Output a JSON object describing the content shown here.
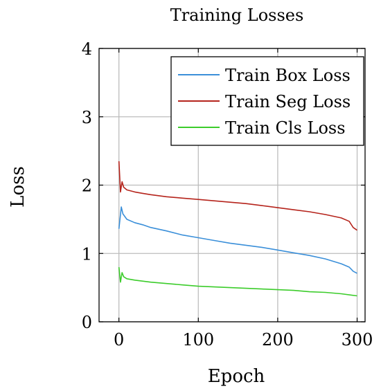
{
  "chart_data": {
    "type": "line",
    "title": "Training Losses",
    "xlabel": "Epoch",
    "ylabel": "Loss",
    "xlim": [
      -25,
      310
    ],
    "ylim": [
      0,
      4
    ],
    "xticks": [
      0,
      100,
      200,
      300
    ],
    "yticks": [
      0,
      1,
      2,
      3,
      4
    ],
    "grid": true,
    "legend_position": "top-right",
    "series": [
      {
        "name": "Train Box Loss",
        "color": "#3a8fd9",
        "x": [
          0,
          3,
          5,
          10,
          20,
          30,
          40,
          60,
          80,
          100,
          120,
          140,
          160,
          180,
          200,
          220,
          240,
          260,
          280,
          290,
          295,
          300
        ],
        "y": [
          1.36,
          1.68,
          1.58,
          1.5,
          1.45,
          1.42,
          1.38,
          1.33,
          1.27,
          1.23,
          1.19,
          1.15,
          1.12,
          1.09,
          1.05,
          1.01,
          0.97,
          0.92,
          0.85,
          0.8,
          0.74,
          0.71
        ]
      },
      {
        "name": "Train Seg Loss",
        "color": "#b5231b",
        "x": [
          0,
          2,
          4,
          6,
          10,
          20,
          30,
          40,
          60,
          80,
          100,
          120,
          140,
          160,
          180,
          200,
          220,
          240,
          260,
          280,
          290,
          295,
          300
        ],
        "y": [
          2.35,
          1.9,
          2.05,
          1.97,
          1.93,
          1.9,
          1.88,
          1.86,
          1.83,
          1.81,
          1.79,
          1.77,
          1.75,
          1.73,
          1.7,
          1.67,
          1.64,
          1.61,
          1.57,
          1.52,
          1.47,
          1.38,
          1.34
        ]
      },
      {
        "name": "Train Cls Loss",
        "color": "#3bcc2a",
        "x": [
          0,
          2,
          4,
          6,
          10,
          20,
          40,
          60,
          80,
          100,
          120,
          140,
          160,
          180,
          200,
          220,
          240,
          260,
          280,
          300
        ],
        "y": [
          0.8,
          0.58,
          0.72,
          0.66,
          0.63,
          0.61,
          0.58,
          0.56,
          0.54,
          0.52,
          0.51,
          0.5,
          0.49,
          0.48,
          0.47,
          0.46,
          0.44,
          0.43,
          0.41,
          0.38
        ]
      }
    ]
  }
}
